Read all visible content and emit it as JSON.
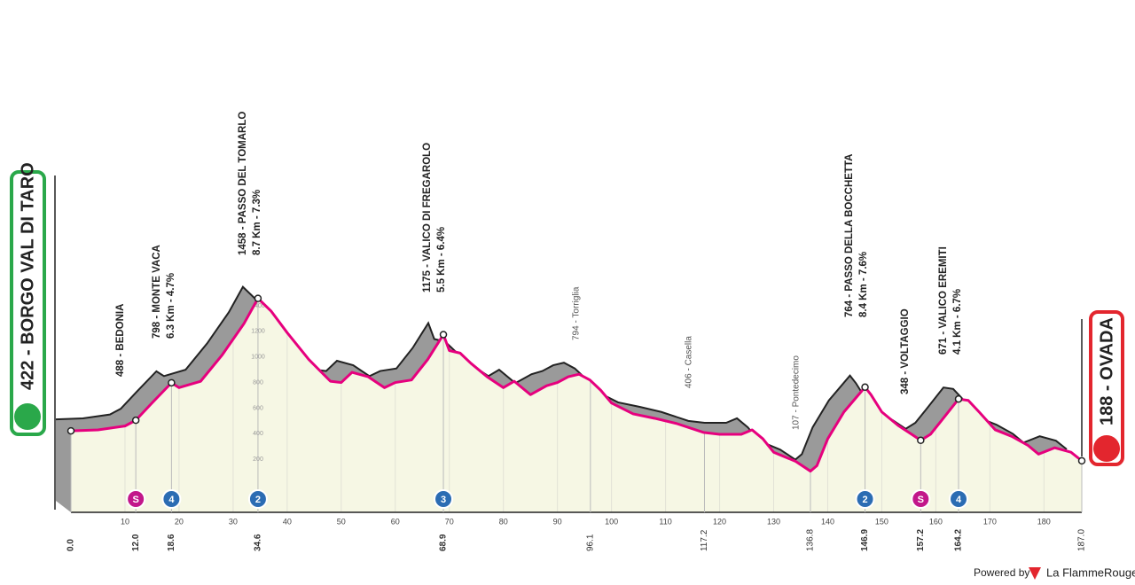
{
  "chart_data": {
    "type": "profile",
    "start": "422 - BORGO VAL DI TARO",
    "finish": "188 - OVADA",
    "x": [
      0,
      5,
      10,
      12,
      15,
      18.6,
      20,
      24,
      28,
      32,
      34.6,
      37,
      40,
      44,
      48,
      50,
      52,
      55,
      58,
      60,
      63,
      66,
      68.9,
      70,
      72,
      74,
      77,
      80,
      82,
      85,
      88,
      90,
      92,
      94,
      96,
      98,
      100,
      104,
      108,
      112,
      117,
      120,
      124,
      126,
      128,
      130,
      134,
      136.8,
      138,
      140,
      143,
      146.9,
      148,
      150,
      153,
      155,
      157.2,
      159,
      161,
      164.2,
      166,
      168,
      171,
      174,
      177,
      179,
      182,
      185,
      187
    ],
    "values": [
      422,
      430,
      460,
      505,
      640,
      798,
      760,
      810,
      1017,
      1260,
      1458,
      1360,
      1190,
      980,
      810,
      800,
      880,
      845,
      760,
      800,
      820,
      980,
      1175,
      1050,
      1030,
      950,
      845,
      760,
      810,
      705,
      775,
      800,
      845,
      865,
      820,
      740,
      640,
      555,
      520,
      480,
      410,
      395,
      395,
      430,
      360,
      255,
      185,
      107,
      150,
      360,
      570,
      764,
      705,
      570,
      465,
      410,
      348,
      395,
      500,
      671,
      660,
      570,
      430,
      380,
      310,
      240,
      290,
      255,
      188
    ],
    "xlim": [
      0,
      187
    ],
    "ylim": [
      0,
      1400
    ],
    "xticks": [
      10,
      20,
      30,
      40,
      50,
      60,
      70,
      80,
      90,
      100,
      110,
      120,
      130,
      140,
      150,
      160,
      170,
      180
    ],
    "yticks": [
      200,
      400,
      600,
      800,
      1000,
      1200,
      1400
    ],
    "km_marks": [
      {
        "value": 0,
        "label": "0.0"
      },
      {
        "value": 12,
        "label": "12.0"
      },
      {
        "value": 18.6,
        "label": "18.6"
      },
      {
        "value": 34.6,
        "label": "34.6"
      },
      {
        "value": 68.9,
        "label": "68.9"
      },
      {
        "value": 96.1,
        "label": "96.1"
      },
      {
        "value": 117.2,
        "label": "117.2"
      },
      {
        "value": 136.8,
        "label": "136.8"
      },
      {
        "value": 146.9,
        "label": "146.9"
      },
      {
        "value": 157.2,
        "label": "157.2"
      },
      {
        "value": 164.2,
        "label": "164.2"
      },
      {
        "value": 187,
        "label": "187.0"
      }
    ],
    "waypoints": [
      {
        "label": "488 - BEDONIA"
      },
      {
        "label": "798 - MONTE VACA",
        "detail": "6.3 Km - 4.7%"
      },
      {
        "label": "1458 - PASSO DEL TOMARLO",
        "detail": "8.7 Km - 7.3%"
      },
      {
        "label": "1175 - VALICO DI FREGAROLO",
        "detail": "5.5 Km - 6.4%"
      },
      {
        "label": "794 - Torriglia"
      },
      {
        "label": "406 - Casella"
      },
      {
        "label": "107 - Pontedecimo"
      },
      {
        "label": "764 - PASSO DELLA BOCCHETTA",
        "detail": "8.4 Km - 7.6%"
      },
      {
        "label": "348 - VOLTAGGIO"
      },
      {
        "label": "671 - VALICO EREMITI",
        "detail": "4.1 Km - 6.7%"
      }
    ],
    "badges": [
      "S",
      "4",
      "2",
      "3",
      "2",
      "S",
      "4"
    ],
    "line_color": "#e6007e"
  },
  "footer": {
    "powered": "Powered by",
    "brand": "La FlammeRouge"
  }
}
